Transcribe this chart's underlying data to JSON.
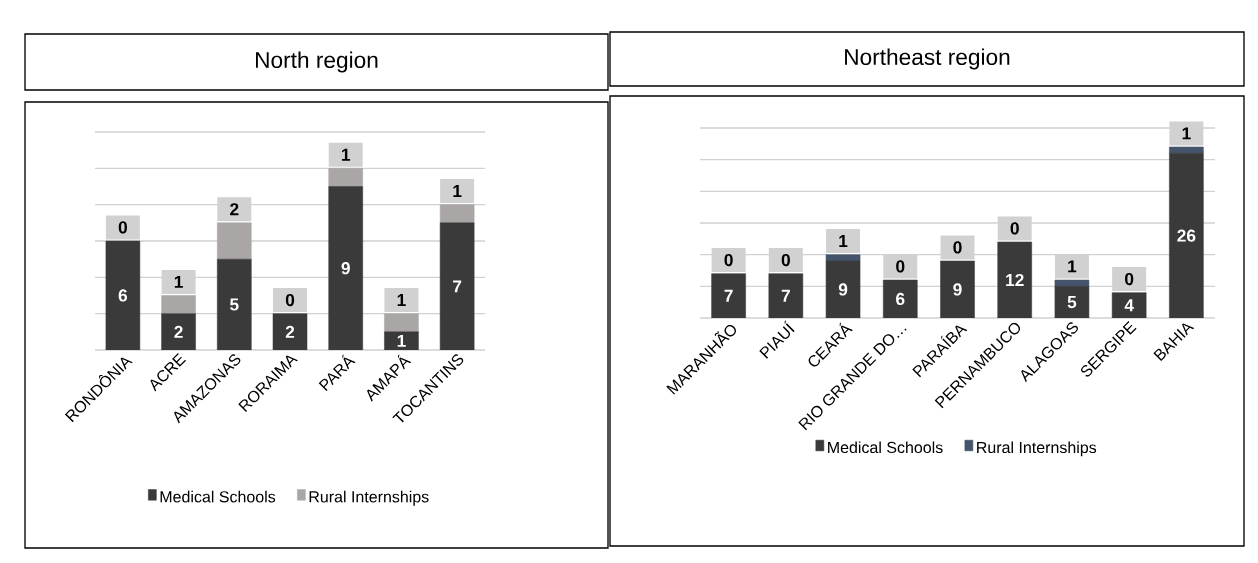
{
  "chart_data": [
    {
      "type": "bar",
      "title": "North region",
      "stacked": true,
      "data_labels": true,
      "legend": "bottom",
      "grid": "y",
      "tick_labels": "x",
      "categories": [
        "RONDÔNIA",
        "ACRE",
        "AMAZONAS",
        "RORAIMA",
        "PARÁ",
        "AMAPÁ",
        "TOCANTINS"
      ],
      "ylim": [
        0,
        12
      ],
      "yticks": [
        {
          "value": 0,
          "label": null
        },
        {
          "value": 2,
          "label": null
        },
        {
          "value": 4,
          "label": null
        },
        {
          "value": 6,
          "label": null
        },
        {
          "value": 8,
          "label": null
        },
        {
          "value": 10,
          "label": null
        },
        {
          "value": 12,
          "label": null
        }
      ],
      "series": [
        {
          "name": "Medical Schools",
          "color": "#3a3a3a",
          "values": [
            6,
            2,
            5,
            2,
            9,
            1,
            7
          ]
        },
        {
          "name": "Rural Internships",
          "color": "#aaa6a6",
          "values": [
            0,
            1,
            2,
            0,
            1,
            1,
            1
          ]
        }
      ]
    },
    {
      "type": "bar",
      "title": "Northeast region",
      "stacked": true,
      "data_labels": true,
      "legend": "bottom",
      "grid": "y",
      "tick_labels": "x",
      "categories": [
        "MARANHÃO",
        "PIAUÍ",
        "CEARÁ",
        "RIO GRANDE DO…",
        "PARAÍBA",
        "PERNAMBUCO",
        "ALAGOAS",
        "SERGIPE",
        "BAHIA"
      ],
      "ylim": [
        0,
        30
      ],
      "yticks": [
        {
          "value": 0,
          "label": null
        },
        {
          "value": 5,
          "label": null
        },
        {
          "value": 10,
          "label": null
        },
        {
          "value": 15,
          "label": null
        },
        {
          "value": 20,
          "label": null
        },
        {
          "value": 25,
          "label": null
        },
        {
          "value": 30,
          "label": null
        }
      ],
      "series": [
        {
          "name": "Medical Schools",
          "color": "#3a3a3a",
          "values": [
            7,
            7,
            9,
            6,
            9,
            12,
            5,
            4,
            26
          ]
        },
        {
          "name": "Rural Internships",
          "color": "#44546a",
          "values": [
            0,
            0,
            1,
            0,
            0,
            0,
            1,
            0,
            1
          ]
        }
      ]
    }
  ]
}
